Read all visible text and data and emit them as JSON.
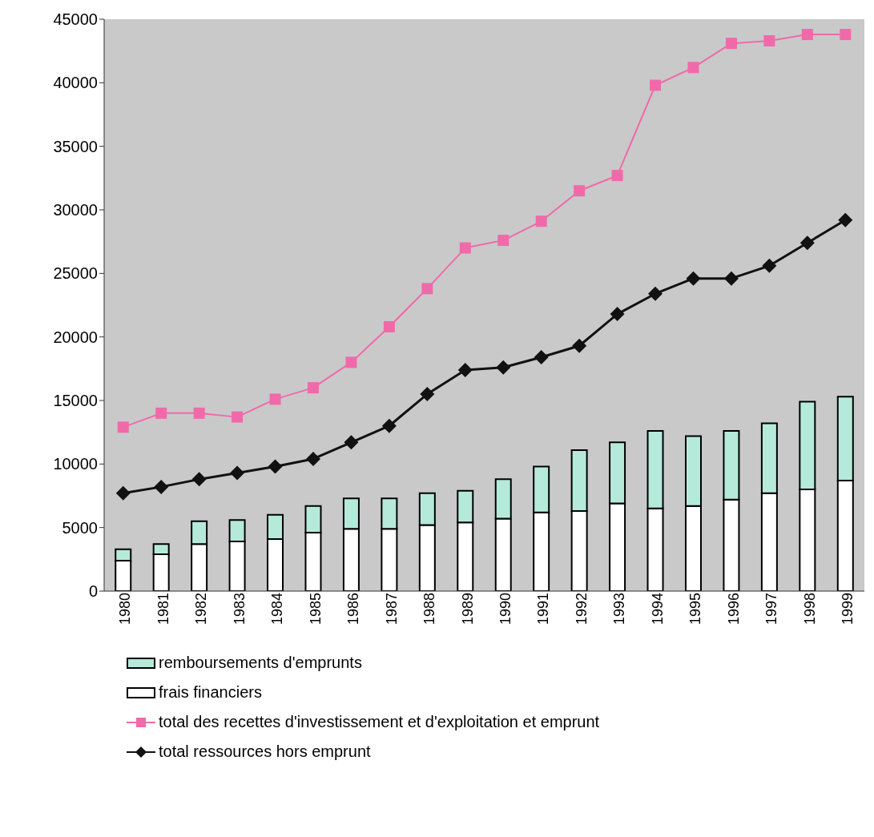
{
  "chart_data": {
    "type": "bar",
    "stacked": true,
    "categories": [
      "1980",
      "1981",
      "1982",
      "1983",
      "1984",
      "1985",
      "1986",
      "1987",
      "1988",
      "1989",
      "1990",
      "1991",
      "1992",
      "1993",
      "1994",
      "1995",
      "1996",
      "1997",
      "1998",
      "1999"
    ],
    "series": [
      {
        "name": "frais financiers",
        "color": "#ffffff",
        "values": [
          2400,
          2900,
          3700,
          3900,
          4100,
          4600,
          4900,
          4900,
          5200,
          5400,
          5700,
          6200,
          6300,
          6900,
          6500,
          6700,
          7200,
          7700,
          8000,
          8700
        ]
      },
      {
        "name": "remboursements d'emprunts",
        "color": "#b5eadb",
        "values": [
          900,
          800,
          1800,
          1700,
          1900,
          2100,
          2400,
          2400,
          2500,
          2500,
          3100,
          3600,
          4800,
          4800,
          6100,
          5500,
          5400,
          5500,
          6900,
          6600
        ]
      },
      {
        "name": "total des recettes d'investissement et d'exploitation et emprunt",
        "type": "line",
        "color": "#f06aaa",
        "marker": "square",
        "values": [
          12900,
          14000,
          14000,
          13700,
          15100,
          16000,
          18000,
          20800,
          23800,
          27000,
          27600,
          29100,
          31500,
          32700,
          39800,
          41200,
          43100,
          43300,
          43800,
          43800
        ]
      },
      {
        "name": "total ressources hors emprunt",
        "type": "line",
        "color": "#111111",
        "marker": "diamond",
        "values": [
          7700,
          8200,
          8800,
          9300,
          9800,
          10400,
          11700,
          13000,
          15500,
          17400,
          17600,
          18400,
          19300,
          21800,
          23400,
          24600,
          24600,
          25600,
          27400,
          29200
        ]
      }
    ],
    "ylim": [
      0,
      45000
    ],
    "yticks": [
      0,
      5000,
      10000,
      15000,
      20000,
      25000,
      30000,
      35000,
      40000,
      45000
    ],
    "grid": false,
    "legend": "bottom"
  }
}
